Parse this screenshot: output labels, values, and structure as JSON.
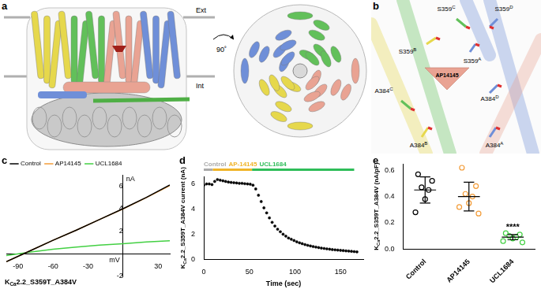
{
  "panels": [
    {
      "panel_label": "a",
      "labels": [
        "Ext",
        "Int",
        "90˚"
      ]
    },
    {
      "panel_label": "b",
      "labels": [
        {
          "text": "S359",
          "sup": "C"
        },
        {
          "text": "S359",
          "sup": "D"
        },
        {
          "text": "S359",
          "sup": "B"
        },
        {
          "text": "S359",
          "sup": "A"
        },
        {
          "text": "A384",
          "sup": "C"
        },
        {
          "text": "A384",
          "sup": "B"
        },
        {
          "text": "A384",
          "sup": "D"
        },
        {
          "text": "A384",
          "sup": "A"
        }
      ],
      "ligand": "AP14145"
    }
  ],
  "chart_data": [
    {
      "panel_label": "c",
      "type": "line",
      "title": [
        {
          "text": "K"
        },
        {
          "text": "Ca",
          "sub": true
        },
        {
          "text": "2.2_S359T_A384V"
        }
      ],
      "x_label": "mV",
      "y_label": "nA",
      "x": [
        -100,
        -80,
        -60,
        -40,
        -20,
        0,
        20,
        40
      ],
      "series": [
        {
          "name": "Control",
          "color": "#000000",
          "values": [
            -0.7,
            0.25,
            1.2,
            2.1,
            3.05,
            4.0,
            5.0,
            6.1
          ]
        },
        {
          "name": "AP14145",
          "color": "#f39c38",
          "values": [
            -0.7,
            0.25,
            1.2,
            2.1,
            3.05,
            3.98,
            4.98,
            6.05
          ]
        },
        {
          "name": "UCL1684",
          "color": "#43d043",
          "values": [
            -0.15,
            0.15,
            0.4,
            0.6,
            0.78,
            0.9,
            1.05,
            1.15
          ]
        }
      ],
      "xlim": [
        -100,
        40
      ],
      "ylim": [
        -2,
        7
      ],
      "xticks": [
        -90,
        -60,
        -30,
        30
      ],
      "yticks": [
        -2,
        2,
        4,
        6
      ],
      "grid": false,
      "legend": "top-left"
    },
    {
      "panel_label": "d",
      "type": "scatter",
      "y_label": [
        {
          "text": "K"
        },
        {
          "text": "Ca",
          "sub": true
        },
        {
          "text": "2.2_S359T_A384V current (nA)"
        }
      ],
      "x_label": "Time (sec)",
      "x": [
        0,
        3,
        6,
        9,
        12,
        15,
        18,
        21,
        24,
        27,
        30,
        33,
        36,
        39,
        42,
        45,
        48,
        51,
        54,
        57,
        60,
        63,
        66,
        69,
        72,
        75,
        78,
        81,
        84,
        87,
        90,
        93,
        96,
        99,
        102,
        105,
        108,
        111,
        114,
        117,
        120,
        123,
        126,
        129,
        132,
        135,
        138,
        141,
        144,
        147,
        150,
        153,
        156,
        159,
        162,
        165,
        168
      ],
      "values": [
        5.9,
        6.0,
        6.0,
        5.95,
        6.2,
        6.35,
        6.3,
        6.25,
        6.2,
        6.15,
        6.12,
        6.1,
        6.08,
        6.05,
        6.05,
        6.02,
        6.0,
        5.98,
        5.9,
        5.6,
        5.1,
        4.6,
        4.1,
        3.7,
        3.3,
        2.95,
        2.65,
        2.4,
        2.2,
        2.0,
        1.85,
        1.7,
        1.6,
        1.5,
        1.4,
        1.32,
        1.25,
        1.18,
        1.12,
        1.07,
        1.02,
        0.98,
        0.94,
        0.9,
        0.87,
        0.84,
        0.81,
        0.78,
        0.76,
        0.74,
        0.72,
        0.7,
        0.68,
        0.66,
        0.64,
        0.62,
        0.6
      ],
      "color": "#000000",
      "marker": "circle",
      "phases": [
        {
          "name": "Control",
          "color": "#aaaaaa",
          "start": 0,
          "end": 10
        },
        {
          "name": "AP-14145",
          "color": "#f0b429",
          "start": 10,
          "end": 53
        },
        {
          "name": "UCL1684",
          "color": "#2ebd59",
          "start": 53,
          "end": 165
        }
      ],
      "xlim": [
        0,
        175
      ],
      "ylim": [
        0,
        6.6
      ],
      "xticks": [
        0,
        50,
        100,
        150
      ],
      "yticks": [
        0,
        2,
        4,
        6
      ],
      "grid": false
    },
    {
      "panel_label": "e",
      "type": "scatter",
      "y_label": [
        {
          "text": "K"
        },
        {
          "text": "Ca",
          "sub": true
        },
        {
          "text": "2.2_S359T_A384V (nA/pF)"
        }
      ],
      "categories": [
        "Control",
        "AP14145",
        "UCL1684"
      ],
      "colors": [
        "#000000",
        "#f39c38",
        "#43d043"
      ],
      "points": [
        [
          0.57,
          0.52,
          0.47,
          0.45,
          0.38,
          0.28
        ],
        [
          0.62,
          0.48,
          0.42,
          0.4,
          0.35,
          0.32,
          0.27
        ],
        [
          0.12,
          0.11,
          0.1,
          0.09,
          0.08,
          0.06,
          0.05
        ]
      ],
      "means": [
        0.45,
        0.4,
        0.09
      ],
      "sd": [
        0.1,
        0.11,
        0.02
      ],
      "marker": "circle-open",
      "annotations": [
        {
          "text": "****",
          "category": "UCL1684"
        }
      ],
      "ylim": [
        0,
        0.65
      ],
      "yticks": [
        {
          "value": 0,
          "label": "0.0"
        },
        {
          "value": 0.2,
          "label": "0.2"
        },
        {
          "value": 0.4,
          "label": "0.4"
        },
        {
          "value": 0.6,
          "label": "0.6"
        }
      ],
      "grid": false
    }
  ]
}
